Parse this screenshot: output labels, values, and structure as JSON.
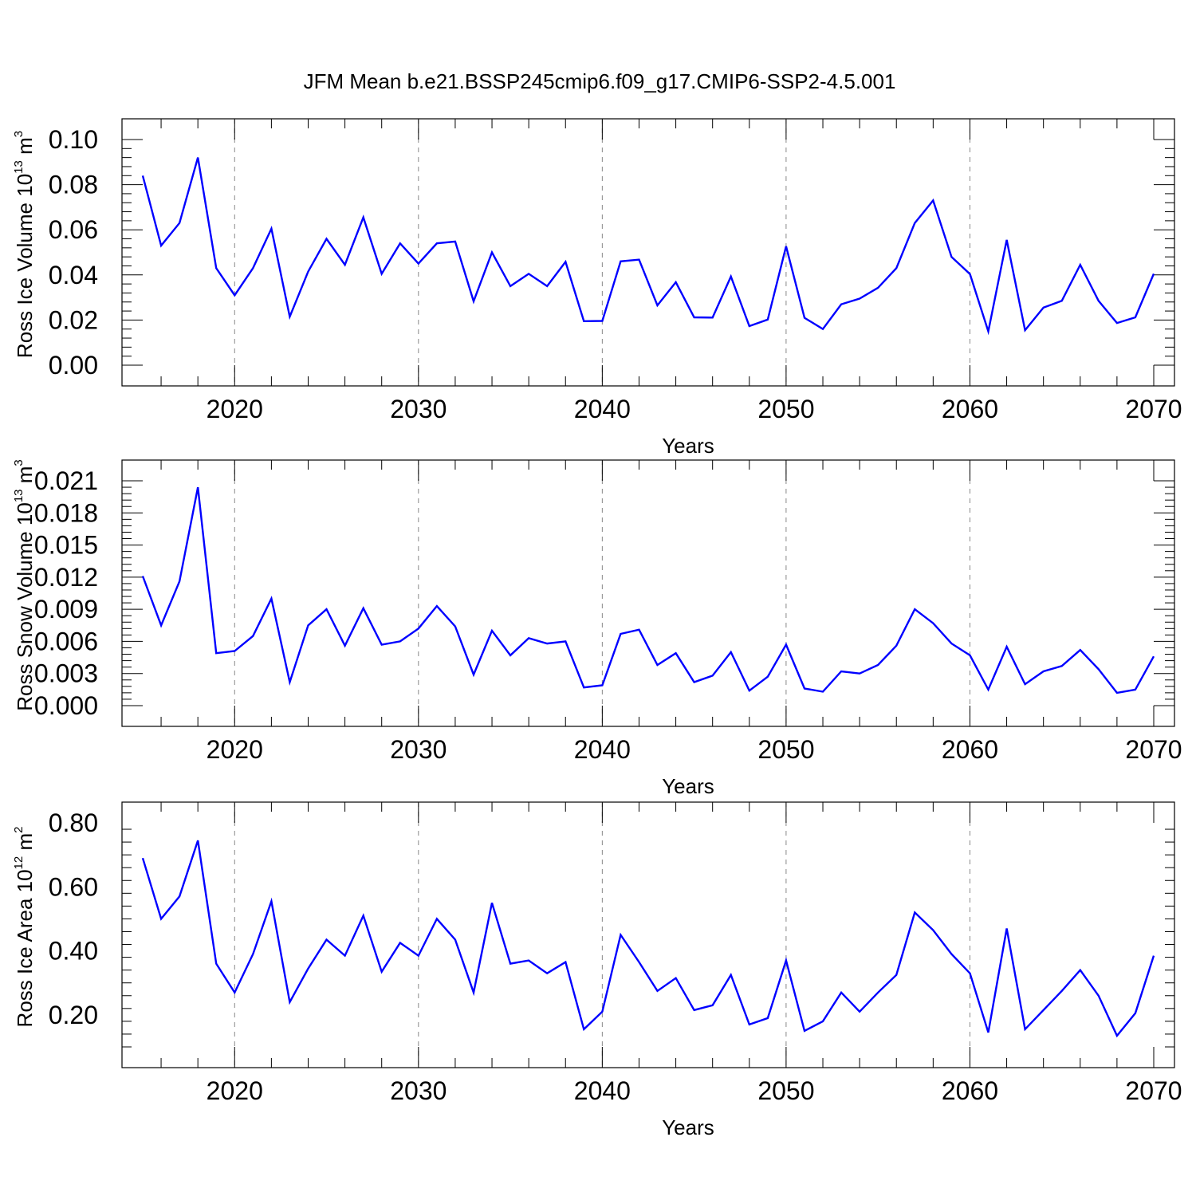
{
  "title": "JFM Mean b.e21.BSSP245cmip6.f09_g17.CMIP6-SSP2-4.5.001",
  "colors": {
    "line": "#0000ff",
    "frame": "#000000",
    "grid": "#888888"
  },
  "chart_data": [
    {
      "type": "line",
      "xlabel": "Years",
      "ylabel": {
        "text": "Ross Ice Volume 10",
        "exponent": "13",
        "unit": " m",
        "unit_exponent": "3"
      },
      "xlim": [
        2015,
        2070
      ],
      "ylim": [
        0,
        0.1
      ],
      "yticks": [
        "0.00",
        "0.02",
        "0.04",
        "0.06",
        "0.08",
        "0.10"
      ],
      "xticks": [
        "2020",
        "2030",
        "2040",
        "2050",
        "2060",
        "2070"
      ],
      "x": [
        2015,
        2016,
        2017,
        2018,
        2019,
        2020,
        2021,
        2022,
        2023,
        2024,
        2025,
        2026,
        2027,
        2028,
        2029,
        2030,
        2031,
        2032,
        2033,
        2034,
        2035,
        2036,
        2037,
        2038,
        2039,
        2040,
        2041,
        2042,
        2043,
        2044,
        2045,
        2046,
        2047,
        2048,
        2049,
        2050,
        2051,
        2052,
        2053,
        2054,
        2055,
        2056,
        2057,
        2058,
        2059,
        2060,
        2061,
        2062,
        2063,
        2064,
        2065,
        2066,
        2067,
        2068,
        2069,
        2070
      ],
      "series": [
        {
          "values": [
            0.084,
            0.053,
            0.063,
            0.092,
            0.043,
            0.031,
            0.043,
            0.0605,
            0.0215,
            0.0415,
            0.056,
            0.0445,
            0.0655,
            0.0405,
            0.054,
            0.045,
            0.054,
            0.0548,
            0.0283,
            0.05,
            0.035,
            0.0405,
            0.035,
            0.0458,
            0.0195,
            0.0196,
            0.046,
            0.0468,
            0.0265,
            0.0368,
            0.0212,
            0.0211,
            0.0393,
            0.0173,
            0.0202,
            0.0527,
            0.021,
            0.016,
            0.027,
            0.0295,
            0.0343,
            0.043,
            0.063,
            0.073,
            0.048,
            0.0404,
            0.015,
            0.0555,
            0.0155,
            0.0255,
            0.0285,
            0.0445,
            0.0285,
            0.0187,
            0.0212,
            0.0405
          ]
        }
      ],
      "grid": "dashed vertical at major x ticks"
    },
    {
      "type": "line",
      "xlabel": "Years",
      "ylabel": {
        "text": "Ross Snow Volume 10",
        "exponent": "13",
        "unit": " m",
        "unit_exponent": "3"
      },
      "xlim": [
        2015,
        2070
      ],
      "ylim": [
        0,
        0.021
      ],
      "yticks": [
        "0.000",
        "0.003",
        "0.006",
        "0.009",
        "0.012",
        "0.015",
        "0.018",
        "0.021"
      ],
      "xticks": [
        "2020",
        "2030",
        "2040",
        "2050",
        "2060",
        "2070"
      ],
      "x": [
        2015,
        2016,
        2017,
        2018,
        2019,
        2020,
        2021,
        2022,
        2023,
        2024,
        2025,
        2026,
        2027,
        2028,
        2029,
        2030,
        2031,
        2032,
        2033,
        2034,
        2035,
        2036,
        2037,
        2038,
        2039,
        2040,
        2041,
        2042,
        2043,
        2044,
        2045,
        2046,
        2047,
        2048,
        2049,
        2050,
        2051,
        2052,
        2053,
        2054,
        2055,
        2056,
        2057,
        2058,
        2059,
        2060,
        2061,
        2062,
        2063,
        2064,
        2065,
        2066,
        2067,
        2068,
        2069,
        2070
      ],
      "series": [
        {
          "values": [
            0.0121,
            0.0075,
            0.0116,
            0.0204,
            0.0049,
            0.0051,
            0.0065,
            0.01,
            0.0022,
            0.0075,
            0.009,
            0.0056,
            0.0091,
            0.0057,
            0.006,
            0.0072,
            0.0093,
            0.0074,
            0.0029,
            0.007,
            0.0047,
            0.0063,
            0.0058,
            0.006,
            0.0017,
            0.0019,
            0.0067,
            0.0071,
            0.0038,
            0.0049,
            0.0022,
            0.0028,
            0.005,
            0.0014,
            0.0027,
            0.0057,
            0.0016,
            0.0013,
            0.0032,
            0.003,
            0.0038,
            0.0056,
            0.009,
            0.0077,
            0.0058,
            0.0047,
            0.0015,
            0.0055,
            0.002,
            0.0032,
            0.0037,
            0.0052,
            0.0034,
            0.0012,
            0.0015,
            0.0046
          ]
        }
      ],
      "grid": "dashed vertical at major x ticks"
    },
    {
      "type": "line",
      "xlabel": "Years",
      "ylabel": {
        "text": "Ross Ice Area 10",
        "exponent": "12",
        "unit": " m",
        "unit_exponent": "2"
      },
      "xlim": [
        2015,
        2070
      ],
      "ylim": [
        0.1,
        0.8
      ],
      "yticks": [
        "0.20",
        "0.40",
        "0.60",
        "0.80"
      ],
      "ytick_values": [
        0.2,
        0.4,
        0.6,
        0.8
      ],
      "xticks": [
        "2020",
        "2030",
        "2040",
        "2050",
        "2060",
        "2070"
      ],
      "x": [
        2015,
        2016,
        2017,
        2018,
        2019,
        2020,
        2021,
        2022,
        2023,
        2024,
        2025,
        2026,
        2027,
        2028,
        2029,
        2030,
        2031,
        2032,
        2033,
        2034,
        2035,
        2036,
        2037,
        2038,
        2039,
        2040,
        2041,
        2042,
        2043,
        2044,
        2045,
        2046,
        2047,
        2048,
        2049,
        2050,
        2051,
        2052,
        2053,
        2054,
        2055,
        2056,
        2057,
        2058,
        2059,
        2060,
        2061,
        2062,
        2063,
        2064,
        2065,
        2066,
        2067,
        2068,
        2069,
        2070
      ],
      "series": [
        {
          "values": [
            0.69,
            0.5,
            0.57,
            0.745,
            0.36,
            0.27,
            0.39,
            0.555,
            0.24,
            0.345,
            0.435,
            0.385,
            0.51,
            0.335,
            0.425,
            0.385,
            0.5,
            0.435,
            0.27,
            0.55,
            0.36,
            0.37,
            0.33,
            0.365,
            0.155,
            0.21,
            0.45,
            0.365,
            0.275,
            0.315,
            0.215,
            0.23,
            0.325,
            0.17,
            0.19,
            0.37,
            0.15,
            0.18,
            0.27,
            0.21,
            0.27,
            0.325,
            0.52,
            0.465,
            0.39,
            0.33,
            0.145,
            0.47,
            0.155,
            0.215,
            0.275,
            0.34,
            0.26,
            0.135,
            0.205,
            0.385
          ]
        }
      ],
      "grid": "dashed vertical at major x ticks"
    }
  ]
}
